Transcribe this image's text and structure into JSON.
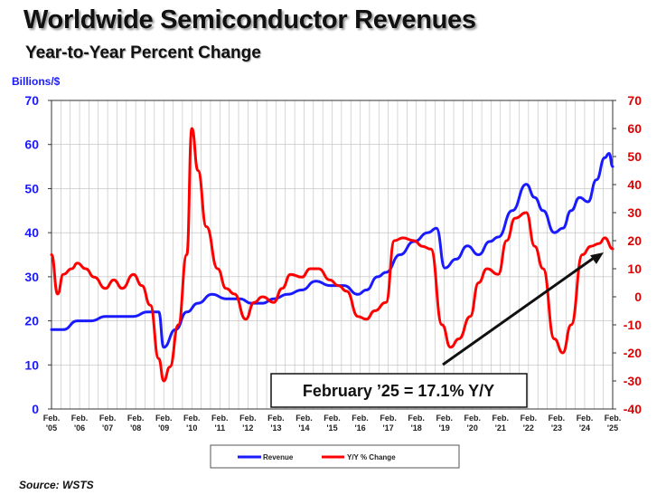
{
  "chart_data": {
    "type": "line",
    "title": "Worldwide Semiconductor Revenues",
    "subtitle": "Year-to-Year Percent Change",
    "ylabel_left": "Billions/$",
    "source": "Source: WSTS",
    "annotation": "February ’25 = 17.1% Y/Y",
    "ylim_left": [
      0,
      70
    ],
    "ylim_right": [
      -40,
      70
    ],
    "yticks_left": [
      "70",
      "60",
      "50",
      "40",
      "30",
      "20",
      "10",
      "0"
    ],
    "yticks_right": [
      "70",
      "60",
      "50",
      "40",
      "30",
      "20",
      "10",
      "0",
      "-10",
      "-20",
      "-30",
      "-40"
    ],
    "x_tick_labels": [
      [
        "Feb.",
        "'05"
      ],
      [
        "Feb.",
        "'06"
      ],
      [
        "Feb.",
        "'07"
      ],
      [
        "Feb.",
        "'08"
      ],
      [
        "Feb.",
        "'09"
      ],
      [
        "Feb.",
        "'10"
      ],
      [
        "Feb.",
        "'11"
      ],
      [
        "Feb.",
        "'12"
      ],
      [
        "Feb.",
        "'13"
      ],
      [
        "Feb.",
        "'14"
      ],
      [
        "Feb.",
        "'15"
      ],
      [
        "Feb.",
        "'16"
      ],
      [
        "Feb.",
        "'17"
      ],
      [
        "Feb.",
        "'18"
      ],
      [
        "Feb.",
        "'19"
      ],
      [
        "Feb.",
        "'20"
      ],
      [
        "Feb.",
        "'21"
      ],
      [
        "Feb.",
        "'22"
      ],
      [
        "Feb.",
        "'23"
      ],
      [
        "Feb.",
        "'24"
      ],
      [
        "Feb.",
        "'25"
      ]
    ],
    "grid": true,
    "legend_position": "bottom",
    "colors": {
      "revenue": "#1a1aff",
      "yoy": "#ff0000",
      "left_axis": "#1a1aff",
      "right_axis": "#e00000",
      "arrow": "#111111"
    },
    "series": [
      {
        "name": "Revenue",
        "axis": "left",
        "x": [
          2005.08,
          2005.5,
          2006.0,
          2006.5,
          2007.0,
          2007.5,
          2008.0,
          2008.5,
          2008.9,
          2009.08,
          2009.5,
          2009.9,
          2010.3,
          2010.8,
          2011.3,
          2011.8,
          2012.2,
          2012.6,
          2013.0,
          2013.5,
          2014.0,
          2014.5,
          2015.0,
          2015.5,
          2016.0,
          2016.3,
          2016.7,
          2017.0,
          2017.5,
          2018.0,
          2018.5,
          2018.8,
          2019.1,
          2019.5,
          2019.9,
          2020.3,
          2020.7,
          2021.0,
          2021.5,
          2022.0,
          2022.3,
          2022.6,
          2023.0,
          2023.3,
          2023.6,
          2023.9,
          2024.2,
          2024.5,
          2024.8,
          2024.95,
          2025.08
        ],
        "values": [
          18,
          18,
          20,
          20,
          21,
          21,
          21,
          22,
          22,
          14,
          18,
          22,
          24,
          26,
          25,
          25,
          24,
          24,
          25,
          26,
          27,
          29,
          28,
          28,
          26,
          27,
          30,
          31,
          35,
          38,
          40,
          41,
          32,
          34,
          37,
          35,
          38,
          39,
          45,
          51,
          48,
          45,
          40,
          41,
          45,
          48,
          47,
          52,
          57,
          58,
          55
        ]
      },
      {
        "name": "Y/Y % Change",
        "axis": "right",
        "x": [
          2005.08,
          2005.3,
          2005.5,
          2005.8,
          2006.0,
          2006.3,
          2006.6,
          2007.0,
          2007.3,
          2007.6,
          2008.0,
          2008.3,
          2008.6,
          2008.9,
          2009.08,
          2009.3,
          2009.6,
          2009.9,
          2010.08,
          2010.3,
          2010.6,
          2011.0,
          2011.3,
          2011.6,
          2012.0,
          2012.3,
          2012.6,
          2013.0,
          2013.3,
          2013.6,
          2014.0,
          2014.3,
          2014.6,
          2015.0,
          2015.3,
          2015.6,
          2016.0,
          2016.3,
          2016.6,
          2017.0,
          2017.3,
          2017.6,
          2018.0,
          2018.3,
          2018.6,
          2019.0,
          2019.3,
          2019.6,
          2020.0,
          2020.3,
          2020.6,
          2021.0,
          2021.3,
          2021.6,
          2022.0,
          2022.3,
          2022.6,
          2023.0,
          2023.3,
          2023.6,
          2024.0,
          2024.3,
          2024.6,
          2024.8,
          2025.08
        ],
        "values": [
          15,
          1,
          8,
          10,
          12,
          10,
          7,
          3,
          6,
          3,
          8,
          4,
          -3,
          -22,
          -30,
          -25,
          -10,
          15,
          60,
          45,
          25,
          10,
          3,
          1,
          -8,
          -2,
          0,
          -2,
          3,
          8,
          7,
          10,
          10,
          6,
          4,
          2,
          -7,
          -8,
          -5,
          -2,
          20,
          21,
          20,
          18,
          17,
          -10,
          -18,
          -15,
          -7,
          5,
          10,
          8,
          20,
          28,
          30,
          18,
          10,
          -15,
          -20,
          -10,
          15,
          18,
          19,
          21,
          17.1
        ]
      }
    ]
  },
  "legend": {
    "revenue_label": "Revenue",
    "yoy_label": "Y/Y % Change"
  }
}
